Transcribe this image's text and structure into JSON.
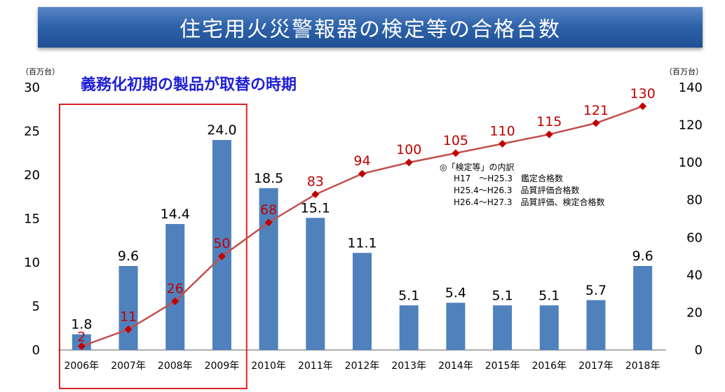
{
  "title": "住宅用火災警報器の検定等の合格台数",
  "chart_data": {
    "type": "bar",
    "categories": [
      "2006年",
      "2007年",
      "2008年",
      "2009年",
      "2010年",
      "2011年",
      "2012年",
      "2013年",
      "2014年",
      "2015年",
      "2016年",
      "2017年",
      "2018年"
    ],
    "bar_values": [
      1.8,
      9.6,
      14.4,
      24.0,
      18.5,
      15.1,
      11.1,
      5.1,
      5.4,
      5.1,
      5.1,
      5.7,
      9.6
    ],
    "bar_labels": [
      "1.8",
      "9.6",
      "14.4",
      "24.0",
      "18.5",
      "15.1",
      "11.1",
      "5.1",
      "5.4",
      "5.1",
      "5.1",
      "5.7",
      "9.6"
    ],
    "line_values": [
      2,
      11,
      26,
      50,
      68,
      83,
      94,
      100,
      105,
      110,
      115,
      121,
      130
    ],
    "line_labels": [
      "2",
      "11",
      "26",
      "50",
      "68",
      "83",
      "94",
      "100",
      "105",
      "110",
      "115",
      "121",
      "130"
    ],
    "left_unit": "（百万台）",
    "right_unit": "（百万台）",
    "left_ylim": [
      0,
      30
    ],
    "left_ticks": [
      0,
      5,
      10,
      15,
      20,
      25,
      30
    ],
    "right_ylim": [
      0,
      140
    ],
    "right_ticks": [
      0,
      20,
      40,
      60,
      80,
      100,
      120,
      140
    ],
    "bar_color": "#4f81bd",
    "line_color": "#c0504d",
    "marker_color": "#c00000",
    "highlight_color": "#e02020",
    "highlight_range": [
      "2006年",
      "2009年"
    ],
    "annotation": "義務化初期の製品が取替の時期",
    "note": {
      "header": "◎「検定等」の内訳",
      "rows": [
        "H17　～H25.3　鑑定合格数",
        "H25.4～H26.3　品質評価合格数",
        "H26.4～H27.3　品質評価、検定合格数"
      ]
    },
    "grid": false,
    "legend": "none"
  }
}
